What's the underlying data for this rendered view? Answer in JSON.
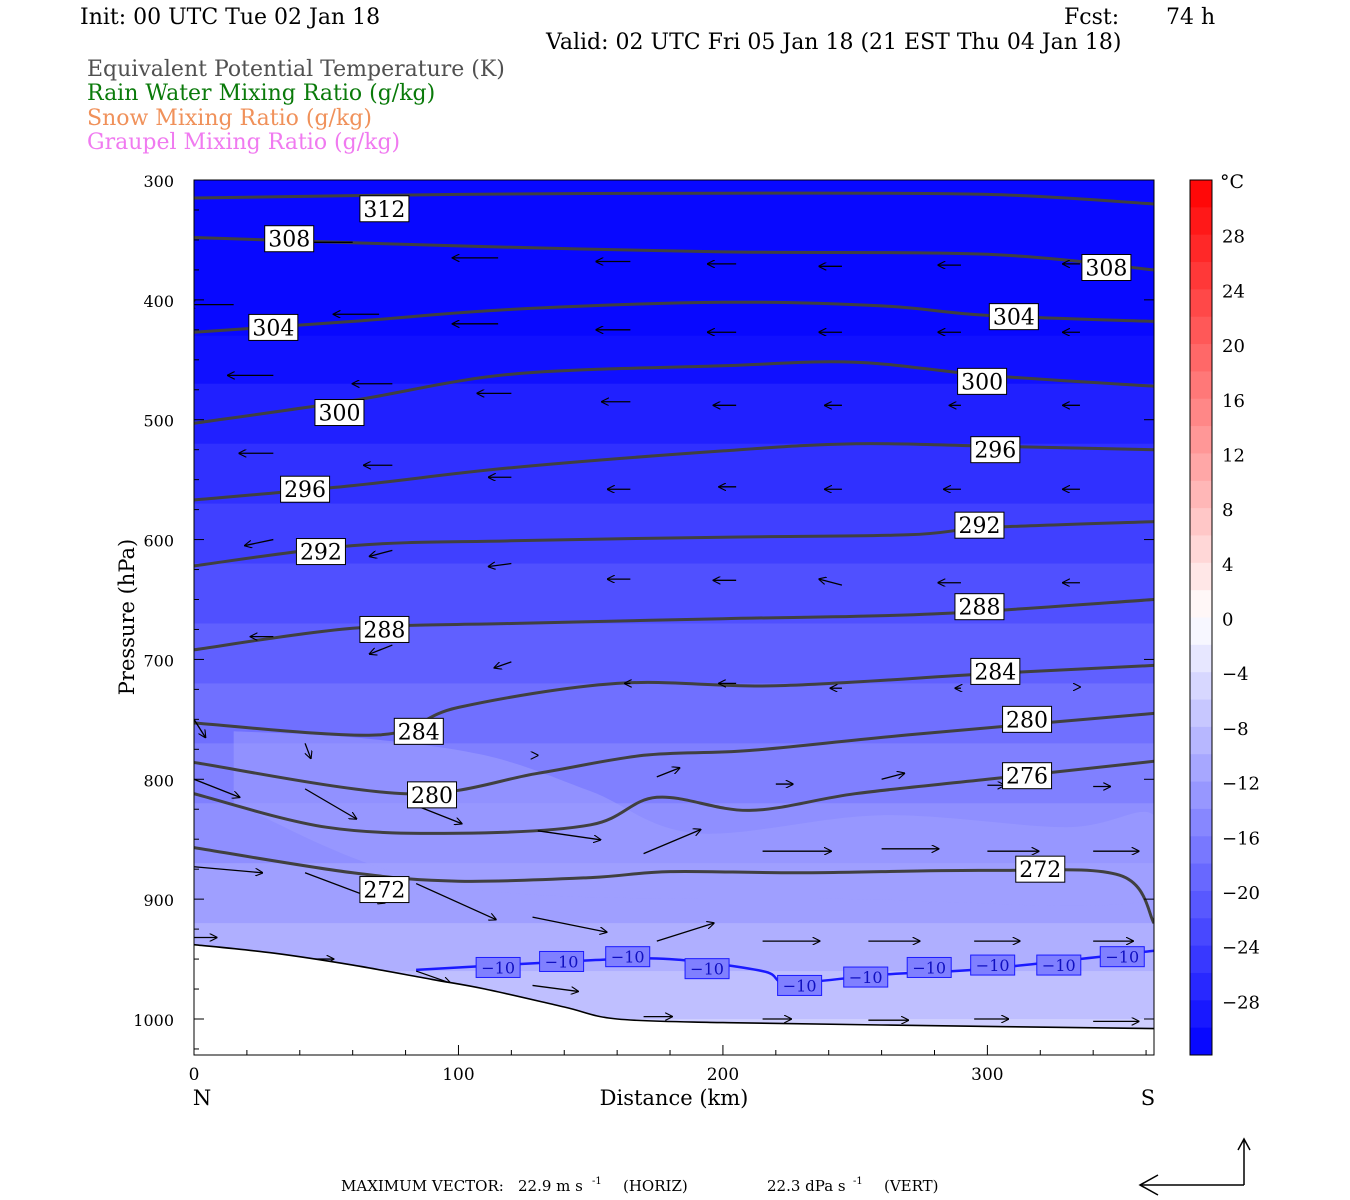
{
  "header": {
    "init": "Init: 00 UTC Tue 02 Jan 18",
    "fcst_label": "Fcst:",
    "fcst_value": "74 h",
    "valid": "Valid: 02 UTC Fri 05 Jan 18 (21 EST Thu 04 Jan 18)"
  },
  "fields": [
    {
      "label": "Equivalent Potential Temperature (K)",
      "color": "#404040"
    },
    {
      "label": "Rain Water Mixing Ratio (g/kg)",
      "color": "#008000"
    },
    {
      "label": "Snow Mixing Ratio (g/kg)",
      "color": "#f08c50"
    },
    {
      "label": "Graupel Mixing Ratio (g/kg)",
      "color": "#f06ef0"
    }
  ],
  "chart_data": {
    "type": "contour cross-section",
    "xlabel": "Distance (km)",
    "ylabel": "Pressure (hPa)",
    "xlim": [
      0,
      363
    ],
    "ylim": [
      1030,
      300
    ],
    "x_ticks": [
      0,
      100,
      200,
      300
    ],
    "y_ticks": [
      300,
      400,
      500,
      600,
      700,
      800,
      900,
      1000
    ],
    "endpoint_left": "N",
    "endpoint_right": "S",
    "temperature_fill_unit": "°C",
    "colorbar": {
      "unit": "°C",
      "min": -32,
      "max": 32,
      "ticks": [
        28,
        24,
        20,
        16,
        12,
        8,
        4,
        0,
        -4,
        -8,
        -12,
        -16,
        -20,
        -24,
        -28
      ]
    },
    "theta_e_contours": [
      {
        "label": "312",
        "points": [
          [
            0,
            315
          ],
          [
            100,
            312
          ],
          [
            200,
            311
          ],
          [
            300,
            312
          ],
          [
            363,
            320
          ]
        ],
        "label_at": [
          72,
          324
        ]
      },
      {
        "label": "308",
        "points": [
          [
            0,
            348
          ],
          [
            100,
            355
          ],
          [
            200,
            360
          ],
          [
            300,
            362
          ],
          [
            363,
            375
          ]
        ],
        "label_at": [
          36,
          349
        ],
        "label_at2": [
          345,
          373
        ]
      },
      {
        "label": "304",
        "points": [
          [
            0,
            427
          ],
          [
            60,
            418
          ],
          [
            120,
            408
          ],
          [
            200,
            402
          ],
          [
            260,
            405
          ],
          [
            300,
            413
          ],
          [
            363,
            418
          ]
        ],
        "label_at": [
          30,
          423
        ],
        "label_at2": [
          310,
          414
        ]
      },
      {
        "label": "300",
        "points": [
          [
            0,
            503
          ],
          [
            60,
            484
          ],
          [
            120,
            462
          ],
          [
            200,
            455
          ],
          [
            250,
            452
          ],
          [
            300,
            463
          ],
          [
            363,
            472
          ]
        ],
        "label_at": [
          55,
          494
        ],
        "label_at2": [
          298,
          468
        ]
      },
      {
        "label": "296",
        "points": [
          [
            0,
            567
          ],
          [
            60,
            555
          ],
          [
            120,
            540
          ],
          [
            200,
            526
          ],
          [
            250,
            520
          ],
          [
            300,
            522
          ],
          [
            363,
            525
          ]
        ],
        "label_at": [
          42,
          558
        ],
        "label_at2": [
          303,
          525
        ]
      },
      {
        "label": "292",
        "points": [
          [
            0,
            622
          ],
          [
            60,
            605
          ],
          [
            120,
            601
          ],
          [
            200,
            598
          ],
          [
            270,
            596
          ],
          [
            300,
            590
          ],
          [
            363,
            585
          ]
        ],
        "label_at": [
          48,
          610
        ],
        "label_at2": [
          297,
          588
        ]
      },
      {
        "label": "288",
        "points": [
          [
            0,
            692
          ],
          [
            60,
            674
          ],
          [
            120,
            670
          ],
          [
            200,
            666
          ],
          [
            280,
            662
          ],
          [
            363,
            650
          ]
        ],
        "label_at": [
          72,
          675
        ],
        "label_at2": [
          297,
          656
        ]
      },
      {
        "label": "284",
        "points": [
          [
            0,
            753
          ],
          [
            70,
            763
          ],
          [
            100,
            740
          ],
          [
            160,
            720
          ],
          [
            220,
            722
          ],
          [
            300,
            712
          ],
          [
            363,
            705
          ]
        ],
        "label_at": [
          85,
          760
        ],
        "label_at2": [
          303,
          710
        ]
      },
      {
        "label": "280",
        "points": [
          [
            0,
            786
          ],
          [
            80,
            812
          ],
          [
            130,
            795
          ],
          [
            170,
            780
          ],
          [
            210,
            776
          ],
          [
            270,
            763
          ],
          [
            363,
            745
          ]
        ],
        "label_at": [
          90,
          813
        ],
        "label_at2": [
          315,
          750
        ]
      },
      {
        "label": "276",
        "points": [
          [
            0,
            812
          ],
          [
            50,
            840
          ],
          [
            100,
            845
          ],
          [
            150,
            838
          ],
          [
            175,
            815
          ],
          [
            210,
            826
          ],
          [
            250,
            812
          ],
          [
            300,
            800
          ],
          [
            363,
            785
          ]
        ],
        "label_at": [
          315,
          797
        ]
      },
      {
        "label": "272",
        "points": [
          [
            0,
            857
          ],
          [
            60,
            878
          ],
          [
            100,
            885
          ],
          [
            150,
            882
          ],
          [
            180,
            877
          ],
          [
            230,
            878
          ],
          [
            300,
            876
          ],
          [
            350,
            880
          ],
          [
            363,
            920
          ]
        ],
        "label_at": [
          72,
          892
        ],
        "label_at2": [
          320,
          875
        ]
      }
    ],
    "isotherm_minus10": {
      "label": "−10",
      "points": [
        [
          84,
          959
        ],
        [
          150,
          951
        ],
        [
          180,
          950
        ],
        [
          215,
          960
        ],
        [
          225,
          970
        ],
        [
          260,
          963
        ],
        [
          300,
          958
        ],
        [
          363,
          943
        ]
      ],
      "label_positions": [
        [
          115,
          957
        ],
        [
          139,
          952
        ],
        [
          164,
          948
        ],
        [
          194,
          958
        ],
        [
          229,
          972
        ],
        [
          254,
          965
        ],
        [
          278,
          957
        ],
        [
          302,
          955
        ],
        [
          327,
          955
        ],
        [
          351,
          948
        ]
      ]
    },
    "wind_vectors": [
      {
        "x": 0,
        "p": 349,
        "u": -12,
        "w": 0
      },
      {
        "x": 60,
        "p": 352,
        "u": -10,
        "w": 0
      },
      {
        "x": 115,
        "p": 365,
        "u": -8,
        "w": 0
      },
      {
        "x": 165,
        "p": 368,
        "u": -6,
        "w": 0
      },
      {
        "x": 205,
        "p": 370,
        "u": -5,
        "w": 0
      },
      {
        "x": 245,
        "p": 372,
        "u": -4,
        "w": 0
      },
      {
        "x": 290,
        "p": 371,
        "u": -4,
        "w": 0
      },
      {
        "x": 335,
        "p": 370,
        "u": -3,
        "w": 0
      },
      {
        "x": 15,
        "p": 404,
        "u": -8,
        "w": 0
      },
      {
        "x": 70,
        "p": 412,
        "u": -8,
        "w": 0
      },
      {
        "x": 115,
        "p": 420,
        "u": -8,
        "w": 0
      },
      {
        "x": 165,
        "p": 425,
        "u": -6,
        "w": 0
      },
      {
        "x": 205,
        "p": 427,
        "u": -5,
        "w": 0
      },
      {
        "x": 245,
        "p": 427,
        "u": -4,
        "w": 0
      },
      {
        "x": 290,
        "p": 427,
        "u": -4,
        "w": 0
      },
      {
        "x": 335,
        "p": 427,
        "u": -3,
        "w": 0
      },
      {
        "x": 30,
        "p": 463,
        "u": -8,
        "w": 0
      },
      {
        "x": 75,
        "p": 470,
        "u": -7,
        "w": 0
      },
      {
        "x": 120,
        "p": 478,
        "u": -6,
        "w": 0
      },
      {
        "x": 165,
        "p": 485,
        "u": -5,
        "w": 0
      },
      {
        "x": 205,
        "p": 488,
        "u": -4,
        "w": 0
      },
      {
        "x": 245,
        "p": 488,
        "u": -3,
        "w": 0
      },
      {
        "x": 290,
        "p": 488,
        "u": -2,
        "w": 0
      },
      {
        "x": 335,
        "p": 488,
        "u": -3,
        "w": 0
      },
      {
        "x": 30,
        "p": 528,
        "u": -6,
        "w": 0
      },
      {
        "x": 75,
        "p": 538,
        "u": -5,
        "w": 0
      },
      {
        "x": 120,
        "p": 548,
        "u": -4,
        "w": 0
      },
      {
        "x": 165,
        "p": 558,
        "u": -4,
        "w": 0
      },
      {
        "x": 205,
        "p": 556,
        "u": -3,
        "w": 0
      },
      {
        "x": 245,
        "p": 558,
        "u": -3,
        "w": 0
      },
      {
        "x": 290,
        "p": 558,
        "u": -3,
        "w": 0
      },
      {
        "x": 335,
        "p": 558,
        "u": -3,
        "w": 0
      },
      {
        "x": 30,
        "p": 600,
        "u": -5,
        "w": -2
      },
      {
        "x": 75,
        "p": 609,
        "u": -4,
        "w": -2
      },
      {
        "x": 120,
        "p": 620,
        "u": -4,
        "w": -1
      },
      {
        "x": 165,
        "p": 633,
        "u": -4,
        "w": 0
      },
      {
        "x": 205,
        "p": 634,
        "u": -4,
        "w": 0
      },
      {
        "x": 245,
        "p": 638,
        "u": -4,
        "w": 2
      },
      {
        "x": 290,
        "p": 636,
        "u": -4,
        "w": 0
      },
      {
        "x": 335,
        "p": 636,
        "u": -3,
        "w": 0
      },
      {
        "x": 30,
        "p": 681,
        "u": -4,
        "w": 0
      },
      {
        "x": 75,
        "p": 688,
        "u": -4,
        "w": -3
      },
      {
        "x": 120,
        "p": 702,
        "u": -3,
        "w": -2
      },
      {
        "x": 165,
        "p": 720,
        "u": -1,
        "w": 0
      },
      {
        "x": 205,
        "p": 720,
        "u": -3,
        "w": 0
      },
      {
        "x": 245,
        "p": 724,
        "u": -2,
        "w": 0
      },
      {
        "x": 290,
        "p": 724,
        "u": -1,
        "w": 0
      },
      {
        "x": 335,
        "p": 723,
        "u": 0,
        "w": 0
      },
      {
        "x": 0,
        "p": 750,
        "u": 2,
        "w": -6
      },
      {
        "x": 42,
        "p": 770,
        "u": 1,
        "w": -5
      },
      {
        "x": 130,
        "p": 780,
        "u": 0,
        "w": 0
      },
      {
        "x": 175,
        "p": 798,
        "u": 4,
        "w": 3
      },
      {
        "x": 220,
        "p": 804,
        "u": 3,
        "w": 0
      },
      {
        "x": 260,
        "p": 800,
        "u": 4,
        "w": 2
      },
      {
        "x": 300,
        "p": 805,
        "u": 3,
        "w": 0
      },
      {
        "x": 340,
        "p": 806,
        "u": 3,
        "w": 0
      },
      {
        "x": 0,
        "p": 800,
        "u": 8,
        "w": -6
      },
      {
        "x": 42,
        "p": 808,
        "u": 9,
        "w": -10
      },
      {
        "x": 84,
        "p": 822,
        "u": 8,
        "w": -6
      },
      {
        "x": 130,
        "p": 843,
        "u": 11,
        "w": -3
      },
      {
        "x": 170,
        "p": 862,
        "u": 10,
        "w": 8
      },
      {
        "x": 215,
        "p": 860,
        "u": 12,
        "w": 0
      },
      {
        "x": 260,
        "p": 858,
        "u": 10,
        "w": 0
      },
      {
        "x": 300,
        "p": 860,
        "u": 9,
        "w": 0
      },
      {
        "x": 340,
        "p": 860,
        "u": 8,
        "w": 0
      },
      {
        "x": 0,
        "p": 873,
        "u": 12,
        "w": -2
      },
      {
        "x": 42,
        "p": 878,
        "u": 14,
        "w": -10
      },
      {
        "x": 84,
        "p": 887,
        "u": 14,
        "w": -12
      },
      {
        "x": 128,
        "p": 915,
        "u": 13,
        "w": -5
      },
      {
        "x": 175,
        "p": 935,
        "u": 10,
        "w": 6
      },
      {
        "x": 215,
        "p": 935,
        "u": 10,
        "w": 0
      },
      {
        "x": 255,
        "p": 935,
        "u": 9,
        "w": 0
      },
      {
        "x": 295,
        "p": 935,
        "u": 8,
        "w": 0
      },
      {
        "x": 340,
        "p": 935,
        "u": 7,
        "w": 0
      },
      {
        "x": 0,
        "p": 932,
        "u": 4,
        "w": 0
      },
      {
        "x": 42,
        "p": 950,
        "u": 5,
        "w": 0
      },
      {
        "x": 84,
        "p": 960,
        "u": 6,
        "w": -4
      },
      {
        "x": 128,
        "p": 972,
        "u": 8,
        "w": -2
      },
      {
        "x": 170,
        "p": 998,
        "u": 5,
        "w": 0
      },
      {
        "x": 215,
        "p": 1000,
        "u": 5,
        "w": 0
      },
      {
        "x": 255,
        "p": 1001,
        "u": 7,
        "w": 0
      },
      {
        "x": 295,
        "p": 1000,
        "u": 6,
        "w": 0
      },
      {
        "x": 340,
        "p": 1002,
        "u": 8,
        "w": 0
      }
    ],
    "terrain_surface_hpa": [
      [
        0,
        938
      ],
      [
        30,
        945
      ],
      [
        60,
        955
      ],
      [
        90,
        967
      ],
      [
        110,
        975
      ],
      [
        140,
        990
      ],
      [
        160,
        1000
      ],
      [
        200,
        1003
      ],
      [
        260,
        1005
      ],
      [
        363,
        1008
      ]
    ],
    "freezing_level_visible": false,
    "max_vector_horiz": "22.9",
    "max_vector_vert": "22.3"
  },
  "footer": {
    "label": "MAXIMUM VECTOR:",
    "horiz_value": "22.9 m s",
    "horiz_exp": "-1",
    "horiz_tag": "(HORIZ)",
    "vert_value": "22.3 dPa s",
    "vert_exp": "-1",
    "vert_tag": "(VERT)"
  }
}
